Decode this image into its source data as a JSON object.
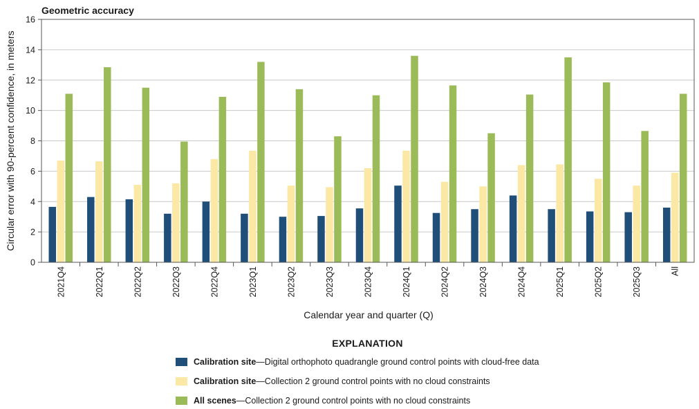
{
  "chart_data": {
    "type": "bar",
    "title": "Geometric accuracy",
    "xlabel": "Calendar year and quarter (Q)",
    "ylabel": "Circular error with 90-percent confidence, in meters",
    "ylim": [
      0,
      16
    ],
    "yticks": [
      0,
      2,
      4,
      6,
      8,
      10,
      12,
      14,
      16
    ],
    "grid": true,
    "categories": [
      "2021Q4",
      "2022Q1",
      "2022Q2",
      "2022Q3",
      "2022Q4",
      "2023Q1",
      "2023Q2",
      "2023Q3",
      "2023Q4",
      "2024Q1",
      "2024Q2",
      "2024Q3",
      "2024Q4",
      "2025Q1",
      "2025Q2",
      "2025Q3",
      "All"
    ],
    "series": [
      {
        "name": "Calibration site",
        "color": "#1f4e79",
        "values": [
          3.65,
          4.3,
          4.15,
          3.2,
          4.0,
          3.2,
          3.0,
          3.05,
          3.55,
          5.05,
          3.25,
          3.5,
          4.4,
          3.5,
          3.35,
          3.3,
          3.6
        ]
      },
      {
        "name": "Calibration site",
        "color": "#fbe8a4",
        "values": [
          6.7,
          6.65,
          5.1,
          5.2,
          6.8,
          7.35,
          5.05,
          4.95,
          6.2,
          7.35,
          5.3,
          5.0,
          6.4,
          6.45,
          5.5,
          5.05,
          5.9
        ]
      },
      {
        "name": "All scenes",
        "color": "#9bbb59",
        "values": [
          11.1,
          12.85,
          11.5,
          7.95,
          10.9,
          13.2,
          11.4,
          8.3,
          11.0,
          13.6,
          11.65,
          8.5,
          11.05,
          13.5,
          11.85,
          8.65,
          11.1
        ]
      }
    ]
  },
  "legend": {
    "title": "EXPLANATION",
    "items": [
      {
        "name": "Calibration site",
        "desc": "—Digital orthophoto quadrangle ground control points with cloud-free data",
        "color": "#1f4e79"
      },
      {
        "name": "Calibration site",
        "desc": "—Collection 2 ground control points with no cloud constraints",
        "color": "#fbe8a4"
      },
      {
        "name": "All scenes",
        "desc": "—Collection 2 ground control points with no cloud constraints",
        "color": "#9bbb59"
      }
    ]
  }
}
